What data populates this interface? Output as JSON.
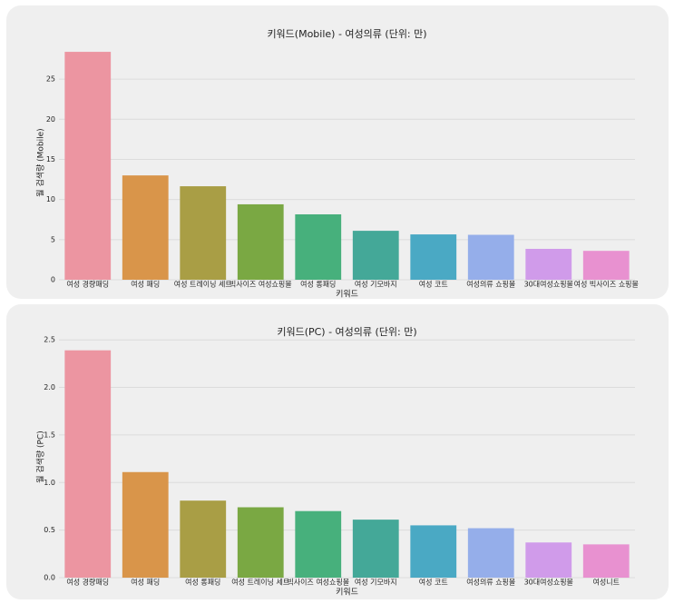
{
  "chart_data": [
    {
      "type": "bar",
      "title": "키워드(Mobile) - 여성의류 (단위: 만)",
      "x_label": "키워드",
      "y_label": "월 검색량 (Mobile)",
      "categories": [
        "여성 경량패딩",
        "여성 패딩",
        "여성 트레이닝 세트",
        "빅사이즈 여성쇼핑몰",
        "여성 롱패딩",
        "여성 기모바지",
        "여성 코트",
        "여성의류 쇼핑몰",
        "30대여성쇼핑몰",
        "여성 빅사이즈 쇼핑몰"
      ],
      "values": [
        28.4,
        13.0,
        11.65,
        9.4,
        8.15,
        6.1,
        5.65,
        5.6,
        3.85,
        3.6
      ],
      "colors": [
        "#ec95a1",
        "#d9954a",
        "#a99e45",
        "#7aa843",
        "#47b07c",
        "#44a898",
        "#4aa9c4",
        "#95aeea",
        "#d09bea",
        "#e891d0"
      ],
      "ylim": [
        0,
        29.2
      ],
      "yticks": [
        0,
        5,
        10,
        15,
        20,
        25
      ],
      "grid": true
    },
    {
      "type": "bar",
      "title": "키워드(PC) - 여성의류 (단위: 만)",
      "x_label": "키워드",
      "y_label": "월 검색량 (PC)",
      "categories": [
        "여성 경량패딩",
        "여성 패딩",
        "여성 롱패딩",
        "여성 트레이닝 세트",
        "빅사이즈 여성쇼핑몰",
        "여성 기모바지",
        "여성 코트",
        "여성의류 쇼핑몰",
        "30대여성쇼핑몰",
        "여성니트"
      ],
      "values": [
        2.39,
        1.11,
        0.81,
        0.74,
        0.7,
        0.61,
        0.55,
        0.52,
        0.37,
        0.35
      ],
      "colors": [
        "#ec95a1",
        "#d9954a",
        "#a99e45",
        "#7aa843",
        "#47b07c",
        "#44a898",
        "#4aa9c4",
        "#95aeea",
        "#d09bea",
        "#e891d0"
      ],
      "ylim": [
        0,
        2.54
      ],
      "yticks": [
        {
          "value": 0,
          "label": "0.0"
        },
        0.5,
        {
          "value": 1,
          "label": "1.0"
        },
        1.5,
        {
          "value": 2,
          "label": "2.0"
        },
        2.5
      ],
      "grid": true
    }
  ]
}
